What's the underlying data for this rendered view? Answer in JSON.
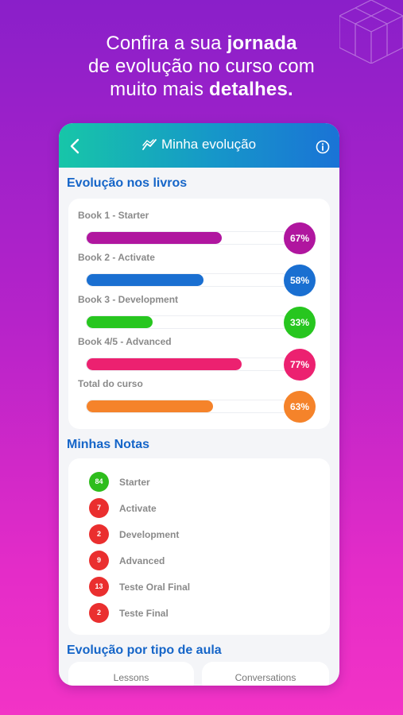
{
  "headline": {
    "line1_normal": "Confira a sua ",
    "line1_bold": "jornada",
    "line2": "de evolução no curso com",
    "line3_normal": "muito mais ",
    "line3_bold": "detalhes."
  },
  "appbar": {
    "title": "Minha evolução",
    "back_icon": "chevron-left-icon",
    "title_icon": "trend-chart-icon",
    "info_icon": "info-icon"
  },
  "books_section": {
    "title": "Evolução nos livros",
    "items": [
      {
        "label": "Book 1 - Starter",
        "percent": 67,
        "percent_text": "67%",
        "color": "#b0169f"
      },
      {
        "label": "Book 2 - Activate",
        "percent": 58,
        "percent_text": "58%",
        "color": "#1a6fd1"
      },
      {
        "label": "Book 3 - Development",
        "percent": 33,
        "percent_text": "33%",
        "color": "#27c61f"
      },
      {
        "label": "Book 4/5 - Advanced",
        "percent": 77,
        "percent_text": "77%",
        "color": "#ec2170"
      },
      {
        "label": "Total do curso",
        "percent": 63,
        "percent_text": "63%",
        "color": "#f5832a"
      }
    ]
  },
  "grades_section": {
    "title": "Minhas Notas",
    "items": [
      {
        "score": "84",
        "label": "Starter",
        "color": "#2ebd1c"
      },
      {
        "score": "7",
        "label": "Activate",
        "color": "#ea2f2f"
      },
      {
        "score": "2",
        "label": "Development",
        "color": "#ea2f2f"
      },
      {
        "score": "9",
        "label": "Advanced",
        "color": "#ea2f2f"
      },
      {
        "score": "13",
        "label": "Teste Oral Final",
        "color": "#ea2f2f"
      },
      {
        "score": "2",
        "label": "Teste Final",
        "color": "#ea2f2f"
      }
    ]
  },
  "class_types_section": {
    "title": "Evolução por tipo de aula",
    "tabs": [
      {
        "label": "Lessons"
      },
      {
        "label": "Conversations"
      }
    ]
  }
}
